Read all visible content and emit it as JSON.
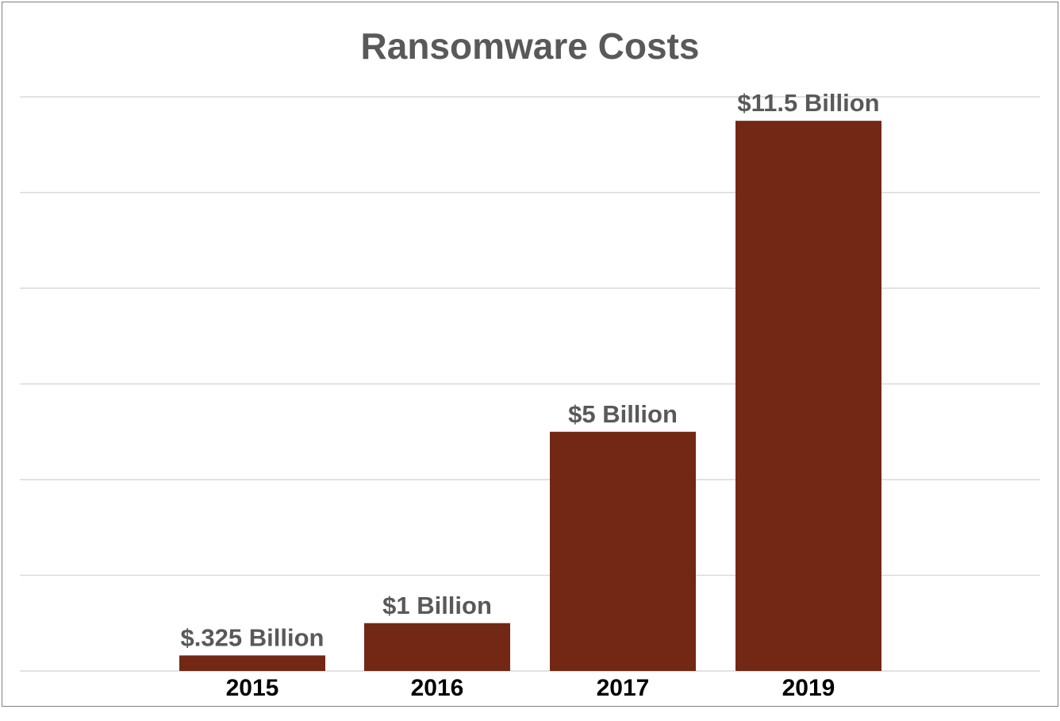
{
  "chart_data": {
    "type": "bar",
    "title": "Ransomware Costs",
    "categories": [
      "2015",
      "2016",
      "2017",
      "2019"
    ],
    "values": [
      0.325,
      1,
      5,
      11.5
    ],
    "data_labels": [
      "$.325 Billion",
      "$1 Billion",
      "$5 Billion",
      "$11.5 Billion"
    ],
    "xlabel": "",
    "ylabel": "",
    "ylim": [
      0,
      12
    ],
    "y_gridline_step": 2,
    "y_tick_labels_shown": false,
    "grid": true,
    "legend": "none",
    "colors": {
      "bar": "#722814",
      "title": "#595959",
      "data_label": "#595959",
      "tick_label": "#000000",
      "grid": "#d9d9d9"
    }
  }
}
